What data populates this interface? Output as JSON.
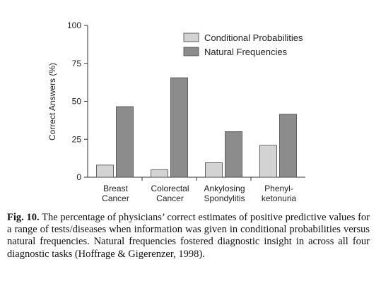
{
  "chart_data": {
    "type": "bar",
    "ylabel": "Correct Answers (%)",
    "ylim": [
      0,
      100
    ],
    "yticks": [
      0,
      25,
      50,
      75,
      100
    ],
    "categories": [
      [
        "Breast",
        "Cancer"
      ],
      [
        "Colorectal",
        "Cancer"
      ],
      [
        "Ankylosing",
        "Spondylitis"
      ],
      [
        "Phenyl-",
        "ketonuria"
      ]
    ],
    "series": [
      {
        "name": "Conditional Probabilities",
        "values": [
          8,
          5,
          9.5,
          21
        ],
        "color": "#d3d3d3"
      },
      {
        "name": "Natural Frequencies",
        "values": [
          46.5,
          65.5,
          30,
          41.5
        ],
        "color": "#8c8c8c"
      }
    ],
    "legend": "top-right",
    "grid": false
  },
  "caption": {
    "fig_label": "Fig. 10.",
    "text": "The percentage of physicians’ correct estimates of positive predictive values for a range of tests/diseases when information was given in conditional probabilities versus natural frequencies. Natural frequencies fostered diagnostic insight in across all four diagnostic tasks (Hoffrage & Gigerenzer, 1998)."
  }
}
